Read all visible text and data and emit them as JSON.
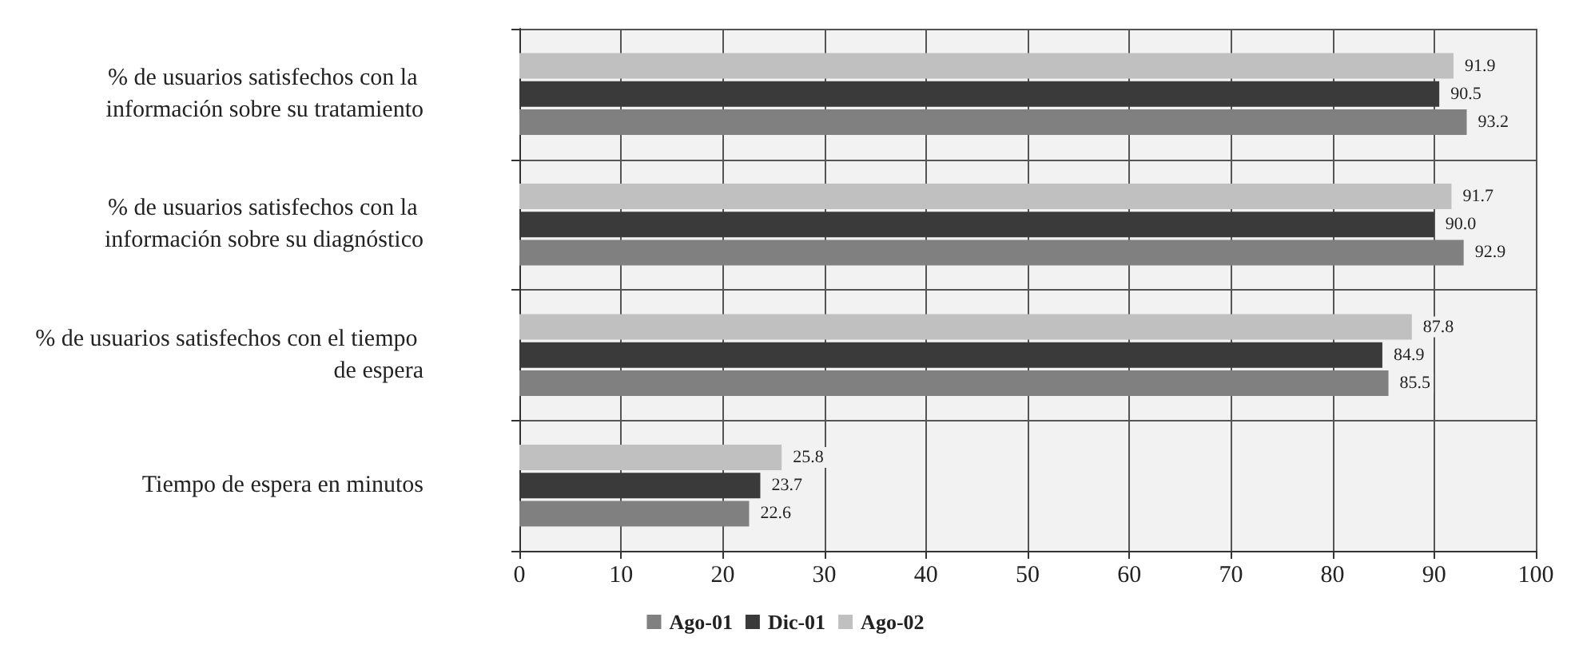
{
  "chart_data": {
    "type": "bar",
    "orientation": "horizontal",
    "categories": [
      "% de usuarios satisfechos con la información sobre su tratamiento",
      "% de usuarios satisfechos con la información sobre su diagnóstico",
      "% de usuarios satisfechos con el tiempo de espera",
      "Tiempo de espera en minutos"
    ],
    "series": [
      {
        "name": "Ago-01",
        "color": "#808080",
        "values": [
          93.2,
          92.9,
          85.5,
          22.6
        ],
        "value_labels": [
          "93.2",
          "92.9",
          "85.5",
          "22.6"
        ]
      },
      {
        "name": "Dic-01",
        "color": "#3a3a3a",
        "values": [
          90.5,
          90.0,
          84.9,
          23.7
        ],
        "value_labels": [
          "90.5",
          "90.0",
          "84.9",
          "23.7"
        ]
      },
      {
        "name": "Ago-02",
        "color": "#c0c0c0",
        "values": [
          91.9,
          91.7,
          87.8,
          25.8
        ],
        "value_labels": [
          "91.9",
          "91.7",
          "87.8",
          "25.8"
        ]
      }
    ],
    "xlim": [
      0,
      100
    ],
    "xticks": [
      0,
      10,
      20,
      30,
      40,
      50,
      60,
      70,
      80,
      90,
      100
    ],
    "grid": true,
    "legend": "bottom"
  }
}
